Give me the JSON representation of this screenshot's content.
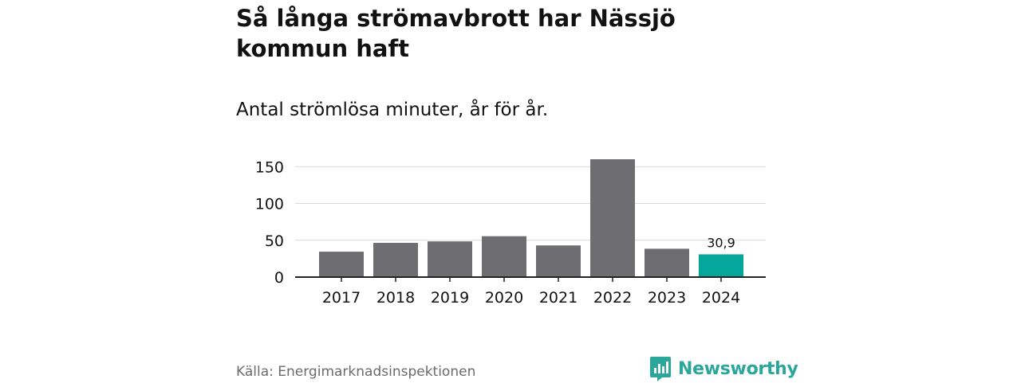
{
  "title": "Så långa strömavbrott har Nässjö kommun haft",
  "subtitle": "Antal strömlösa minuter, år för år.",
  "source": "Källa: Energimarknadsinspektionen",
  "brand": {
    "name": "Newsworthy",
    "icon": "newsworthy-logo-icon",
    "color": "#2aa69b"
  },
  "colors": {
    "bar": "#6e6d72",
    "highlight": "#05a79c",
    "grid": "#d9d9d9",
    "axis": "#222222"
  },
  "chart_data": {
    "type": "bar",
    "title": "Så långa strömavbrott har Nässjö kommun haft",
    "subtitle": "Antal strömlösa minuter, år för år.",
    "xlabel": "",
    "ylabel": "",
    "categories": [
      "2017",
      "2018",
      "2019",
      "2020",
      "2021",
      "2022",
      "2023",
      "2024"
    ],
    "values": [
      34.5,
      46.5,
      48.5,
      55.5,
      43,
      160,
      38.5,
      30.9
    ],
    "ylim": [
      0,
      160
    ],
    "yticks": [
      0,
      50,
      100,
      150
    ],
    "grid": true,
    "highlight_index": 7,
    "data_labels": [
      {
        "index": 7,
        "text": "30,9"
      }
    ]
  }
}
